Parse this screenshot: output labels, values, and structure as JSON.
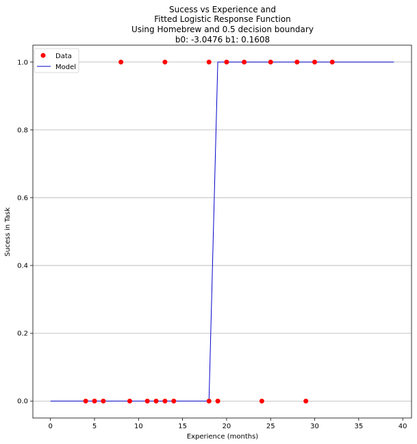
{
  "chart_data": {
    "type": "scatter",
    "title": [
      "Sucess vs Experience and",
      "Fitted Logistic Response Function",
      "Using Homebrew and 0.5 decision boundary",
      "b0: -3.0476 b1: 0.1608"
    ],
    "xlabel": "Experience (months)",
    "ylabel": "Sucess in Task",
    "xlim": [
      -2,
      41
    ],
    "ylim": [
      -0.05,
      1.05
    ],
    "xticks": [
      0,
      5,
      10,
      15,
      20,
      25,
      30,
      35,
      40
    ],
    "yticks": [
      0.0,
      0.2,
      0.4,
      0.6,
      0.8,
      1.0
    ],
    "xtick_labels": [
      "0",
      "5",
      "10",
      "15",
      "20",
      "25",
      "30",
      "35",
      "40"
    ],
    "ytick_labels": [
      "0.0",
      "0.2",
      "0.4",
      "0.6",
      "0.8",
      "1.0"
    ],
    "grid": "horizontal",
    "legend_position": "top-left",
    "series": [
      {
        "name": "Data",
        "kind": "scatter",
        "color": "#ff0000",
        "x": [
          4,
          5,
          6,
          9,
          11,
          12,
          13,
          14,
          18,
          19,
          24,
          29,
          8,
          13,
          18,
          20,
          22,
          25,
          28,
          30,
          32
        ],
        "y": [
          0,
          0,
          0,
          0,
          0,
          0,
          0,
          0,
          0,
          0,
          0,
          0,
          1,
          1,
          1,
          1,
          1,
          1,
          1,
          1,
          1
        ]
      },
      {
        "name": "Model",
        "kind": "line",
        "color": "#0000cc",
        "x": [
          0,
          18,
          19,
          39
        ],
        "y": [
          0,
          0,
          1,
          1
        ]
      }
    ]
  }
}
